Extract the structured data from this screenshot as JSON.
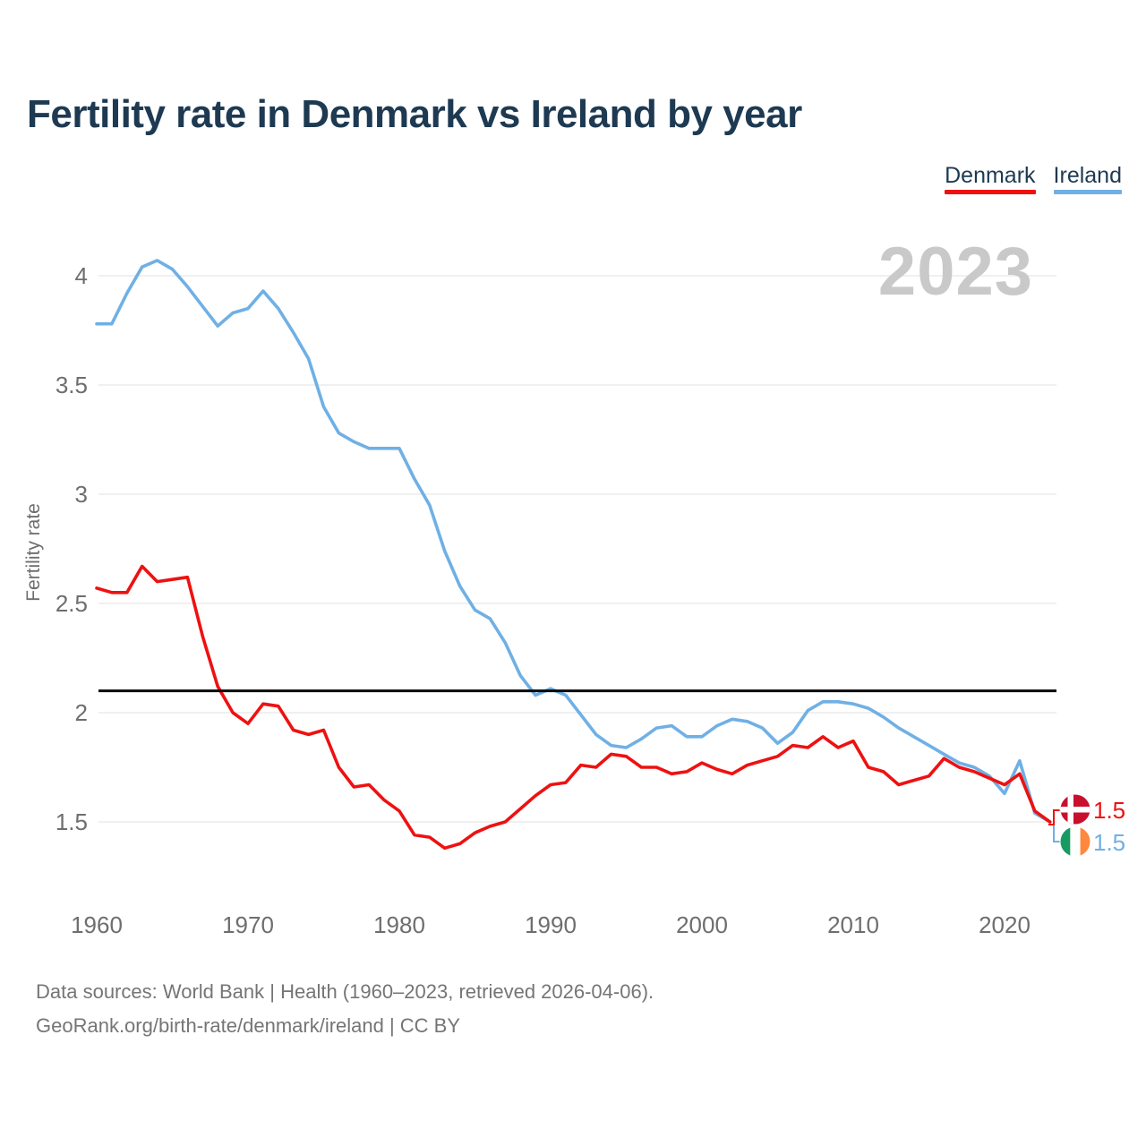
{
  "title": "Fertility rate in Denmark vs Ireland by year",
  "watermark": "2023",
  "colors": {
    "navy": "#1e3a52",
    "denmark_line": "#ee1111",
    "ireland_line": "#6fb0e5",
    "reference_line": "#0a0a0a",
    "gridline": "#e7e7e7",
    "tick_text": "#6e6e6e",
    "watermark_gray": "#c9c9c9",
    "denmark_flag_red": "#c8102e",
    "flag_white": "#ffffff",
    "ireland_green": "#169b62",
    "ireland_orange": "#ff883e"
  },
  "legend": [
    {
      "label": "Denmark",
      "color": "#ee1111"
    },
    {
      "label": "Ireland",
      "color": "#6fb0e5"
    }
  ],
  "y_axis": {
    "label": "Fertility rate",
    "ticks": [
      4,
      3.5,
      3,
      2.5,
      2,
      1.5
    ]
  },
  "x_axis": {
    "ticks": [
      1960,
      1970,
      1980,
      1990,
      2000,
      2010,
      2020
    ]
  },
  "reference_line": {
    "value": 2.1
  },
  "end_labels": [
    {
      "series": "Denmark",
      "value": "1.5",
      "icon": "denmark-flag",
      "color": "#ee1111"
    },
    {
      "series": "Ireland",
      "value": "1.5",
      "icon": "ireland-flag",
      "color": "#6fb0e5"
    }
  ],
  "footer": {
    "line1": "Data sources: World Bank | Health (1960–2023, retrieved 2026-04-06).",
    "line2": "GeoRank.org/birth-rate/denmark/ireland | CC BY"
  },
  "chart_data": {
    "type": "line",
    "title": "Fertility rate in Denmark vs Ireland by year",
    "ylabel": "Fertility rate",
    "ylim": [
      1.25,
      4.15
    ],
    "grid": "horizontal",
    "legend_position": "top-right",
    "reference_line_value": 2.1,
    "x": [
      1960,
      1961,
      1962,
      1963,
      1964,
      1965,
      1966,
      1967,
      1968,
      1969,
      1970,
      1971,
      1972,
      1973,
      1974,
      1975,
      1976,
      1977,
      1978,
      1979,
      1980,
      1981,
      1982,
      1983,
      1984,
      1985,
      1986,
      1987,
      1988,
      1989,
      1990,
      1991,
      1992,
      1993,
      1994,
      1995,
      1996,
      1997,
      1998,
      1999,
      2000,
      2001,
      2002,
      2003,
      2004,
      2005,
      2006,
      2007,
      2008,
      2009,
      2010,
      2011,
      2012,
      2013,
      2014,
      2015,
      2016,
      2017,
      2018,
      2019,
      2020,
      2021,
      2022,
      2023
    ],
    "series": [
      {
        "name": "Denmark",
        "color": "#ee1111",
        "values": [
          2.57,
          2.55,
          2.55,
          2.67,
          2.6,
          2.61,
          2.62,
          2.35,
          2.12,
          2.0,
          1.95,
          2.04,
          2.03,
          1.92,
          1.9,
          1.92,
          1.75,
          1.66,
          1.67,
          1.6,
          1.55,
          1.44,
          1.43,
          1.38,
          1.4,
          1.45,
          1.48,
          1.5,
          1.56,
          1.62,
          1.67,
          1.68,
          1.76,
          1.75,
          1.81,
          1.8,
          1.75,
          1.75,
          1.72,
          1.73,
          1.77,
          1.74,
          1.72,
          1.76,
          1.78,
          1.8,
          1.85,
          1.84,
          1.89,
          1.84,
          1.87,
          1.75,
          1.73,
          1.67,
          1.69,
          1.71,
          1.79,
          1.75,
          1.73,
          1.7,
          1.67,
          1.72,
          1.55,
          1.5
        ]
      },
      {
        "name": "Ireland",
        "color": "#6fb0e5",
        "values": [
          3.78,
          3.78,
          3.92,
          4.04,
          4.07,
          4.03,
          3.95,
          3.86,
          3.77,
          3.83,
          3.85,
          3.93,
          3.85,
          3.74,
          3.62,
          3.4,
          3.28,
          3.24,
          3.21,
          3.21,
          3.21,
          3.07,
          2.95,
          2.74,
          2.58,
          2.47,
          2.43,
          2.32,
          2.17,
          2.08,
          2.11,
          2.08,
          1.99,
          1.9,
          1.85,
          1.84,
          1.88,
          1.93,
          1.94,
          1.89,
          1.89,
          1.94,
          1.97,
          1.96,
          1.93,
          1.86,
          1.91,
          2.01,
          2.05,
          2.05,
          2.04,
          2.02,
          1.98,
          1.93,
          1.89,
          1.85,
          1.81,
          1.77,
          1.75,
          1.71,
          1.63,
          1.78,
          1.54,
          1.5
        ]
      }
    ]
  }
}
